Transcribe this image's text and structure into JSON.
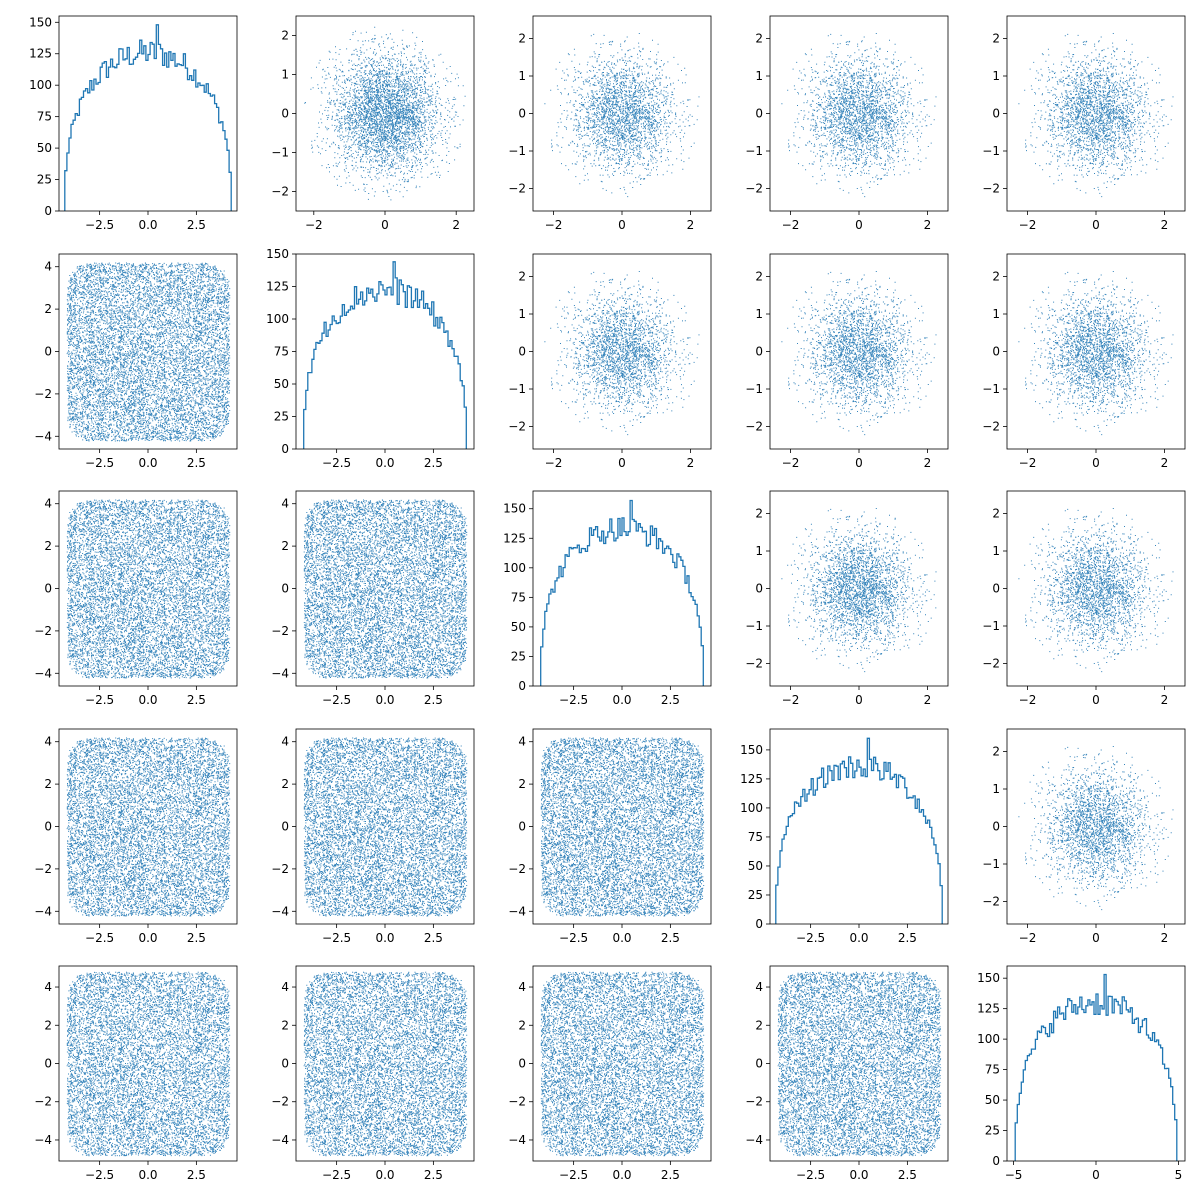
{
  "chart_data": {
    "type": "pairplot",
    "layout": {
      "rows": 5,
      "cols": 5
    },
    "colors": {
      "series": "#1f77b4",
      "axes": "#000000",
      "background": "#ffffff"
    },
    "grid": false,
    "legend": "none",
    "title": "",
    "note_layout": "diagonal panels are step histograms of each variable; off-diagonal panels are dense scatter plots (upper triangle ~N(0,0.75) blob, lower triangle uniform-like square)",
    "panels": [
      {
        "row": 0,
        "col": 0,
        "type": "histogram",
        "xlim": [
          -4.6,
          4.6
        ],
        "ylim": [
          0,
          155
        ],
        "xticks": [
          "-2.5",
          "0.0",
          "2.5"
        ],
        "yticks": [
          "0",
          "25",
          "50",
          "75",
          "100",
          "125",
          "150"
        ],
        "bins_range": [
          -4.3,
          4.3
        ],
        "bin_count": 80,
        "peak": 148
      },
      {
        "row": 0,
        "col": 1,
        "type": "scatter",
        "xlim": [
          -2.5,
          2.5
        ],
        "ylim": [
          -2.5,
          2.5
        ],
        "xticks": [
          "-2",
          "0",
          "2"
        ],
        "yticks": [
          "-2",
          "-1",
          "0",
          "1",
          "2"
        ],
        "distribution": "gaussian",
        "spread": 0.75,
        "points": 10000
      },
      {
        "row": 0,
        "col": 2,
        "type": "scatter",
        "xlim": [
          -2.6,
          2.6
        ],
        "ylim": [
          -2.6,
          2.6
        ],
        "xticks": [
          "-2",
          "0",
          "2"
        ],
        "yticks": [
          "-2",
          "-1",
          "0",
          "1",
          "2"
        ],
        "distribution": "gaussian",
        "spread": 0.75,
        "points": 10000
      },
      {
        "row": 0,
        "col": 3,
        "type": "scatter",
        "xlim": [
          -2.6,
          2.6
        ],
        "ylim": [
          -2.6,
          2.6
        ],
        "xticks": [
          "-2",
          "0",
          "2"
        ],
        "yticks": [
          "-2",
          "-1",
          "0",
          "1",
          "2"
        ],
        "distribution": "gaussian",
        "spread": 0.75,
        "points": 10000
      },
      {
        "row": 0,
        "col": 4,
        "type": "scatter",
        "xlim": [
          -2.6,
          2.6
        ],
        "ylim": [
          -2.6,
          2.6
        ],
        "xticks": [
          "-2",
          "0",
          "2"
        ],
        "yticks": [
          "-2",
          "-1",
          "0",
          "1",
          "2"
        ],
        "distribution": "gaussian",
        "spread": 0.75,
        "points": 10000
      },
      {
        "row": 1,
        "col": 0,
        "type": "scatter",
        "xlim": [
          -4.6,
          4.6
        ],
        "ylim": [
          -4.6,
          4.6
        ],
        "xticks": [
          "-2.5",
          "0.0",
          "2.5"
        ],
        "yticks": [
          "-4",
          "-2",
          "0",
          "2",
          "4"
        ],
        "distribution": "uniform",
        "spread": 4.2,
        "points": 10000
      },
      {
        "row": 1,
        "col": 1,
        "type": "histogram",
        "xlim": [
          -4.6,
          4.6
        ],
        "ylim": [
          0,
          150
        ],
        "xticks": [
          "-2.5",
          "0.0",
          "2.5"
        ],
        "yticks": [
          "0",
          "25",
          "50",
          "75",
          "100",
          "125",
          "150"
        ],
        "bins_range": [
          -4.2,
          4.2
        ],
        "bin_count": 80,
        "peak": 144
      },
      {
        "row": 1,
        "col": 2,
        "type": "scatter",
        "xlim": [
          -2.6,
          2.6
        ],
        "ylim": [
          -2.6,
          2.6
        ],
        "xticks": [
          "-2",
          "0",
          "2"
        ],
        "yticks": [
          "-2",
          "-1",
          "0",
          "1",
          "2"
        ],
        "distribution": "gaussian",
        "spread": 0.75,
        "points": 10000
      },
      {
        "row": 1,
        "col": 3,
        "type": "scatter",
        "xlim": [
          -2.6,
          2.6
        ],
        "ylim": [
          -2.6,
          2.6
        ],
        "xticks": [
          "-2",
          "0",
          "2"
        ],
        "yticks": [
          "-2",
          "-1",
          "0",
          "1",
          "2"
        ],
        "distribution": "gaussian",
        "spread": 0.75,
        "points": 10000
      },
      {
        "row": 1,
        "col": 4,
        "type": "scatter",
        "xlim": [
          -2.6,
          2.6
        ],
        "ylim": [
          -2.6,
          2.6
        ],
        "xticks": [
          "-2",
          "0",
          "2"
        ],
        "yticks": [
          "-2",
          "-1",
          "0",
          "1",
          "2"
        ],
        "distribution": "gaussian",
        "spread": 0.75,
        "points": 10000
      },
      {
        "row": 2,
        "col": 0,
        "type": "scatter",
        "xlim": [
          -4.6,
          4.6
        ],
        "ylim": [
          -4.6,
          4.6
        ],
        "xticks": [
          "-2.5",
          "0.0",
          "2.5"
        ],
        "yticks": [
          "-4",
          "-2",
          "0",
          "2",
          "4"
        ],
        "distribution": "uniform",
        "spread": 4.2,
        "points": 10000
      },
      {
        "row": 2,
        "col": 1,
        "type": "scatter",
        "xlim": [
          -4.6,
          4.6
        ],
        "ylim": [
          -4.6,
          4.6
        ],
        "xticks": [
          "-2.5",
          "0.0",
          "2.5"
        ],
        "yticks": [
          "-4",
          "-2",
          "0",
          "2",
          "4"
        ],
        "distribution": "uniform",
        "spread": 4.2,
        "points": 10000
      },
      {
        "row": 2,
        "col": 2,
        "type": "histogram",
        "xlim": [
          -4.6,
          4.6
        ],
        "ylim": [
          0,
          165
        ],
        "xticks": [
          "-2.5",
          "0.0",
          "2.5"
        ],
        "yticks": [
          "0",
          "25",
          "50",
          "75",
          "100",
          "125",
          "150"
        ],
        "bins_range": [
          -4.2,
          4.2
        ],
        "bin_count": 80,
        "peak": 157
      },
      {
        "row": 2,
        "col": 3,
        "type": "scatter",
        "xlim": [
          -2.6,
          2.6
        ],
        "ylim": [
          -2.6,
          2.6
        ],
        "xticks": [
          "-2",
          "0",
          "2"
        ],
        "yticks": [
          "-2",
          "-1",
          "0",
          "1",
          "2"
        ],
        "distribution": "gaussian",
        "spread": 0.75,
        "points": 10000
      },
      {
        "row": 2,
        "col": 4,
        "type": "scatter",
        "xlim": [
          -2.6,
          2.6
        ],
        "ylim": [
          -2.6,
          2.6
        ],
        "xticks": [
          "-2",
          "0",
          "2"
        ],
        "yticks": [
          "-2",
          "-1",
          "0",
          "1",
          "2"
        ],
        "distribution": "gaussian",
        "spread": 0.75,
        "points": 10000
      },
      {
        "row": 3,
        "col": 0,
        "type": "scatter",
        "xlim": [
          -4.6,
          4.6
        ],
        "ylim": [
          -4.6,
          4.6
        ],
        "xticks": [
          "-2.5",
          "0.0",
          "2.5"
        ],
        "yticks": [
          "-4",
          "-2",
          "0",
          "2",
          "4"
        ],
        "distribution": "uniform",
        "spread": 4.2,
        "points": 10000
      },
      {
        "row": 3,
        "col": 1,
        "type": "scatter",
        "xlim": [
          -4.6,
          4.6
        ],
        "ylim": [
          -4.6,
          4.6
        ],
        "xticks": [
          "-2.5",
          "0.0",
          "2.5"
        ],
        "yticks": [
          "-4",
          "-2",
          "0",
          "2",
          "4"
        ],
        "distribution": "uniform",
        "spread": 4.2,
        "points": 10000
      },
      {
        "row": 3,
        "col": 2,
        "type": "scatter",
        "xlim": [
          -4.6,
          4.6
        ],
        "ylim": [
          -4.6,
          4.6
        ],
        "xticks": [
          "-2.5",
          "0.0",
          "2.5"
        ],
        "yticks": [
          "-4",
          "-2",
          "0",
          "2",
          "4"
        ],
        "distribution": "uniform",
        "spread": 4.2,
        "points": 10000
      },
      {
        "row": 3,
        "col": 3,
        "type": "histogram",
        "xlim": [
          -4.6,
          4.6
        ],
        "ylim": [
          0,
          168
        ],
        "xticks": [
          "-2.5",
          "0.0",
          "2.5"
        ],
        "yticks": [
          "0",
          "25",
          "50",
          "75",
          "100",
          "125",
          "150"
        ],
        "bins_range": [
          -4.3,
          4.3
        ],
        "bin_count": 80,
        "peak": 160
      },
      {
        "row": 3,
        "col": 4,
        "type": "scatter",
        "xlim": [
          -2.6,
          2.6
        ],
        "ylim": [
          -2.6,
          2.6
        ],
        "xticks": [
          "-2",
          "0",
          "2"
        ],
        "yticks": [
          "-2",
          "-1",
          "0",
          "1",
          "2"
        ],
        "distribution": "gaussian",
        "spread": 0.75,
        "points": 10000
      },
      {
        "row": 4,
        "col": 0,
        "type": "scatter",
        "xlim": [
          -4.6,
          4.6
        ],
        "ylim": [
          -5.1,
          5.1
        ],
        "xticks": [
          "-2.5",
          "0.0",
          "2.5"
        ],
        "yticks": [
          "-4",
          "-2",
          "0",
          "2",
          "4"
        ],
        "distribution": "uniform",
        "spread": 4.2,
        "yspread": 4.8,
        "points": 10000
      },
      {
        "row": 4,
        "col": 1,
        "type": "scatter",
        "xlim": [
          -4.6,
          4.6
        ],
        "ylim": [
          -5.1,
          5.1
        ],
        "xticks": [
          "-2.5",
          "0.0",
          "2.5"
        ],
        "yticks": [
          "-4",
          "-2",
          "0",
          "2",
          "4"
        ],
        "distribution": "uniform",
        "spread": 4.2,
        "yspread": 4.8,
        "points": 10000
      },
      {
        "row": 4,
        "col": 2,
        "type": "scatter",
        "xlim": [
          -4.6,
          4.6
        ],
        "ylim": [
          -5.1,
          5.1
        ],
        "xticks": [
          "-2.5",
          "0.0",
          "2.5"
        ],
        "yticks": [
          "-4",
          "-2",
          "0",
          "2",
          "4"
        ],
        "distribution": "uniform",
        "spread": 4.2,
        "yspread": 4.8,
        "points": 10000
      },
      {
        "row": 4,
        "col": 3,
        "type": "scatter",
        "xlim": [
          -4.6,
          4.6
        ],
        "ylim": [
          -5.1,
          5.1
        ],
        "xticks": [
          "-2.5",
          "0.0",
          "2.5"
        ],
        "yticks": [
          "-4",
          "-2",
          "0",
          "2",
          "4"
        ],
        "distribution": "uniform",
        "spread": 4.2,
        "yspread": 4.8,
        "points": 10000
      },
      {
        "row": 4,
        "col": 4,
        "type": "histogram",
        "xlim": [
          -5.4,
          5.4
        ],
        "ylim": [
          0,
          160
        ],
        "xticks": [
          "-5",
          "0",
          "5"
        ],
        "yticks": [
          "0",
          "25",
          "50",
          "75",
          "100",
          "125",
          "150"
        ],
        "bins_range": [
          -4.9,
          4.9
        ],
        "bin_count": 80,
        "peak": 153
      }
    ]
  }
}
